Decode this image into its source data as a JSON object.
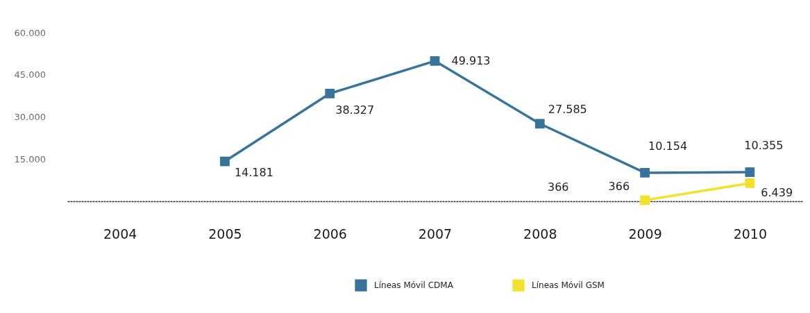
{
  "chart_data": {
    "type": "line",
    "categories": [
      "2004",
      "2005",
      "2006",
      "2007",
      "2008",
      "2009",
      "2010"
    ],
    "series": [
      {
        "name": "Líneas Móvil CDMA",
        "color": "#3a7399",
        "values": [
          null,
          14181,
          38327,
          49913,
          27585,
          10154,
          10355
        ],
        "value_labels": [
          null,
          "14.181",
          "38.327",
          "49.913",
          "27.585",
          "10.154",
          "10.355"
        ]
      },
      {
        "name": "Líneas Móvil GSM",
        "color": "#f2e22e",
        "values": [
          null,
          null,
          null,
          null,
          null,
          366,
          6439
        ],
        "value_labels": [
          null,
          null,
          null,
          null,
          null,
          "366",
          "6.439"
        ]
      }
    ],
    "annotations": [
      "366"
    ],
    "ylim": [
      0,
      60000
    ],
    "yticks": [
      {
        "value": 15000,
        "label": "15.000"
      },
      {
        "value": 30000,
        "label": "30.000"
      },
      {
        "value": 45000,
        "label": "45.000"
      },
      {
        "value": 60000,
        "label": "60.000"
      }
    ],
    "marker": "square",
    "line_style": "solid",
    "legend": "bottom"
  }
}
